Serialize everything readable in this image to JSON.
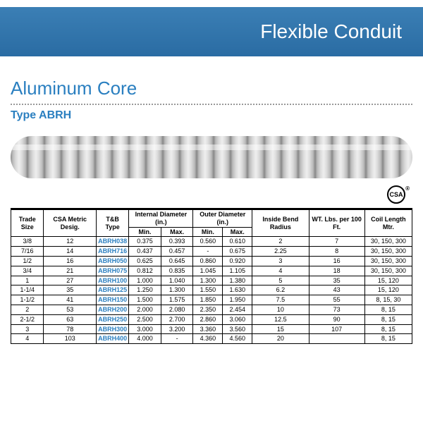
{
  "header": {
    "title": "Flexible Conduit"
  },
  "section": {
    "title": "Aluminum Core",
    "subtitle": "Type ABRH"
  },
  "cert": {
    "label": "CSA"
  },
  "colors": {
    "header_bg_top": "#3b7fb5",
    "header_bg_bottom": "#2a6ca3",
    "accent": "#2a7fc0",
    "border": "#000000",
    "dotted": "#999999"
  },
  "table": {
    "headers": {
      "trade": "Trade Size",
      "csa": "CSA Metric Desig.",
      "tb": "T&B Type",
      "internal": "Internal Diameter (in.)",
      "outer": "Outer Diameter (in.)",
      "bend": "Inside Bend Radius",
      "wt": "WT. Lbs. per 100 Ft.",
      "coil": "Coil Length Mtr.",
      "min": "Min.",
      "max": "Max."
    },
    "rows": [
      {
        "trade": "3/8",
        "csa": "12",
        "tb": "ABRH038",
        "imin": "0.375",
        "imax": "0.393",
        "omin": "0.560",
        "omax": "0.610",
        "bend": "2",
        "wt": "7",
        "coil": "30, 150, 300"
      },
      {
        "trade": "7/16",
        "csa": "14",
        "tb": "ABRH716",
        "imin": "0.437",
        "imax": "0.457",
        "omin": "-",
        "omax": "0.675",
        "bend": "2.25",
        "wt": "8",
        "coil": "30, 150, 300"
      },
      {
        "trade": "1/2",
        "csa": "16",
        "tb": "ABRH050",
        "imin": "0.625",
        "imax": "0.645",
        "omin": "0.860",
        "omax": "0.920",
        "bend": "3",
        "wt": "16",
        "coil": "30, 150, 300"
      },
      {
        "trade": "3/4",
        "csa": "21",
        "tb": "ABRH075",
        "imin": "0.812",
        "imax": "0.835",
        "omin": "1.045",
        "omax": "1.105",
        "bend": "4",
        "wt": "18",
        "coil": "30, 150, 300"
      },
      {
        "trade": "1",
        "csa": "27",
        "tb": "ABRH100",
        "imin": "1.000",
        "imax": "1.040",
        "omin": "1.300",
        "omax": "1.380",
        "bend": "5",
        "wt": "35",
        "coil": "15, 120"
      },
      {
        "trade": "1-1/4",
        "csa": "35",
        "tb": "ABRH125",
        "imin": "1.250",
        "imax": "1.300",
        "omin": "1.550",
        "omax": "1.630",
        "bend": "6.2",
        "wt": "43",
        "coil": "15, 120"
      },
      {
        "trade": "1-1/2",
        "csa": "41",
        "tb": "ABRH150",
        "imin": "1.500",
        "imax": "1.575",
        "omin": "1.850",
        "omax": "1.950",
        "bend": "7.5",
        "wt": "55",
        "coil": "8, 15, 30"
      },
      {
        "trade": "2",
        "csa": "53",
        "tb": "ABRH200",
        "imin": "2.000",
        "imax": "2.080",
        "omin": "2.350",
        "omax": "2.454",
        "bend": "10",
        "wt": "73",
        "coil": "8, 15"
      },
      {
        "trade": "2-1/2",
        "csa": "63",
        "tb": "ABRH250",
        "imin": "2.500",
        "imax": "2.700",
        "omin": "2.860",
        "omax": "3.060",
        "bend": "12.5",
        "wt": "90",
        "coil": "8, 15"
      },
      {
        "trade": "3",
        "csa": "78",
        "tb": "ABRH300",
        "imin": "3.000",
        "imax": "3.200",
        "omin": "3.360",
        "omax": "3.560",
        "bend": "15",
        "wt": "107",
        "coil": "8, 15"
      },
      {
        "trade": "4",
        "csa": "103",
        "tb": "ABRH400",
        "imin": "4.000",
        "imax": "-",
        "omin": "4.360",
        "omax": "4.560",
        "bend": "20",
        "wt": "",
        "coil": "8, 15"
      }
    ]
  }
}
